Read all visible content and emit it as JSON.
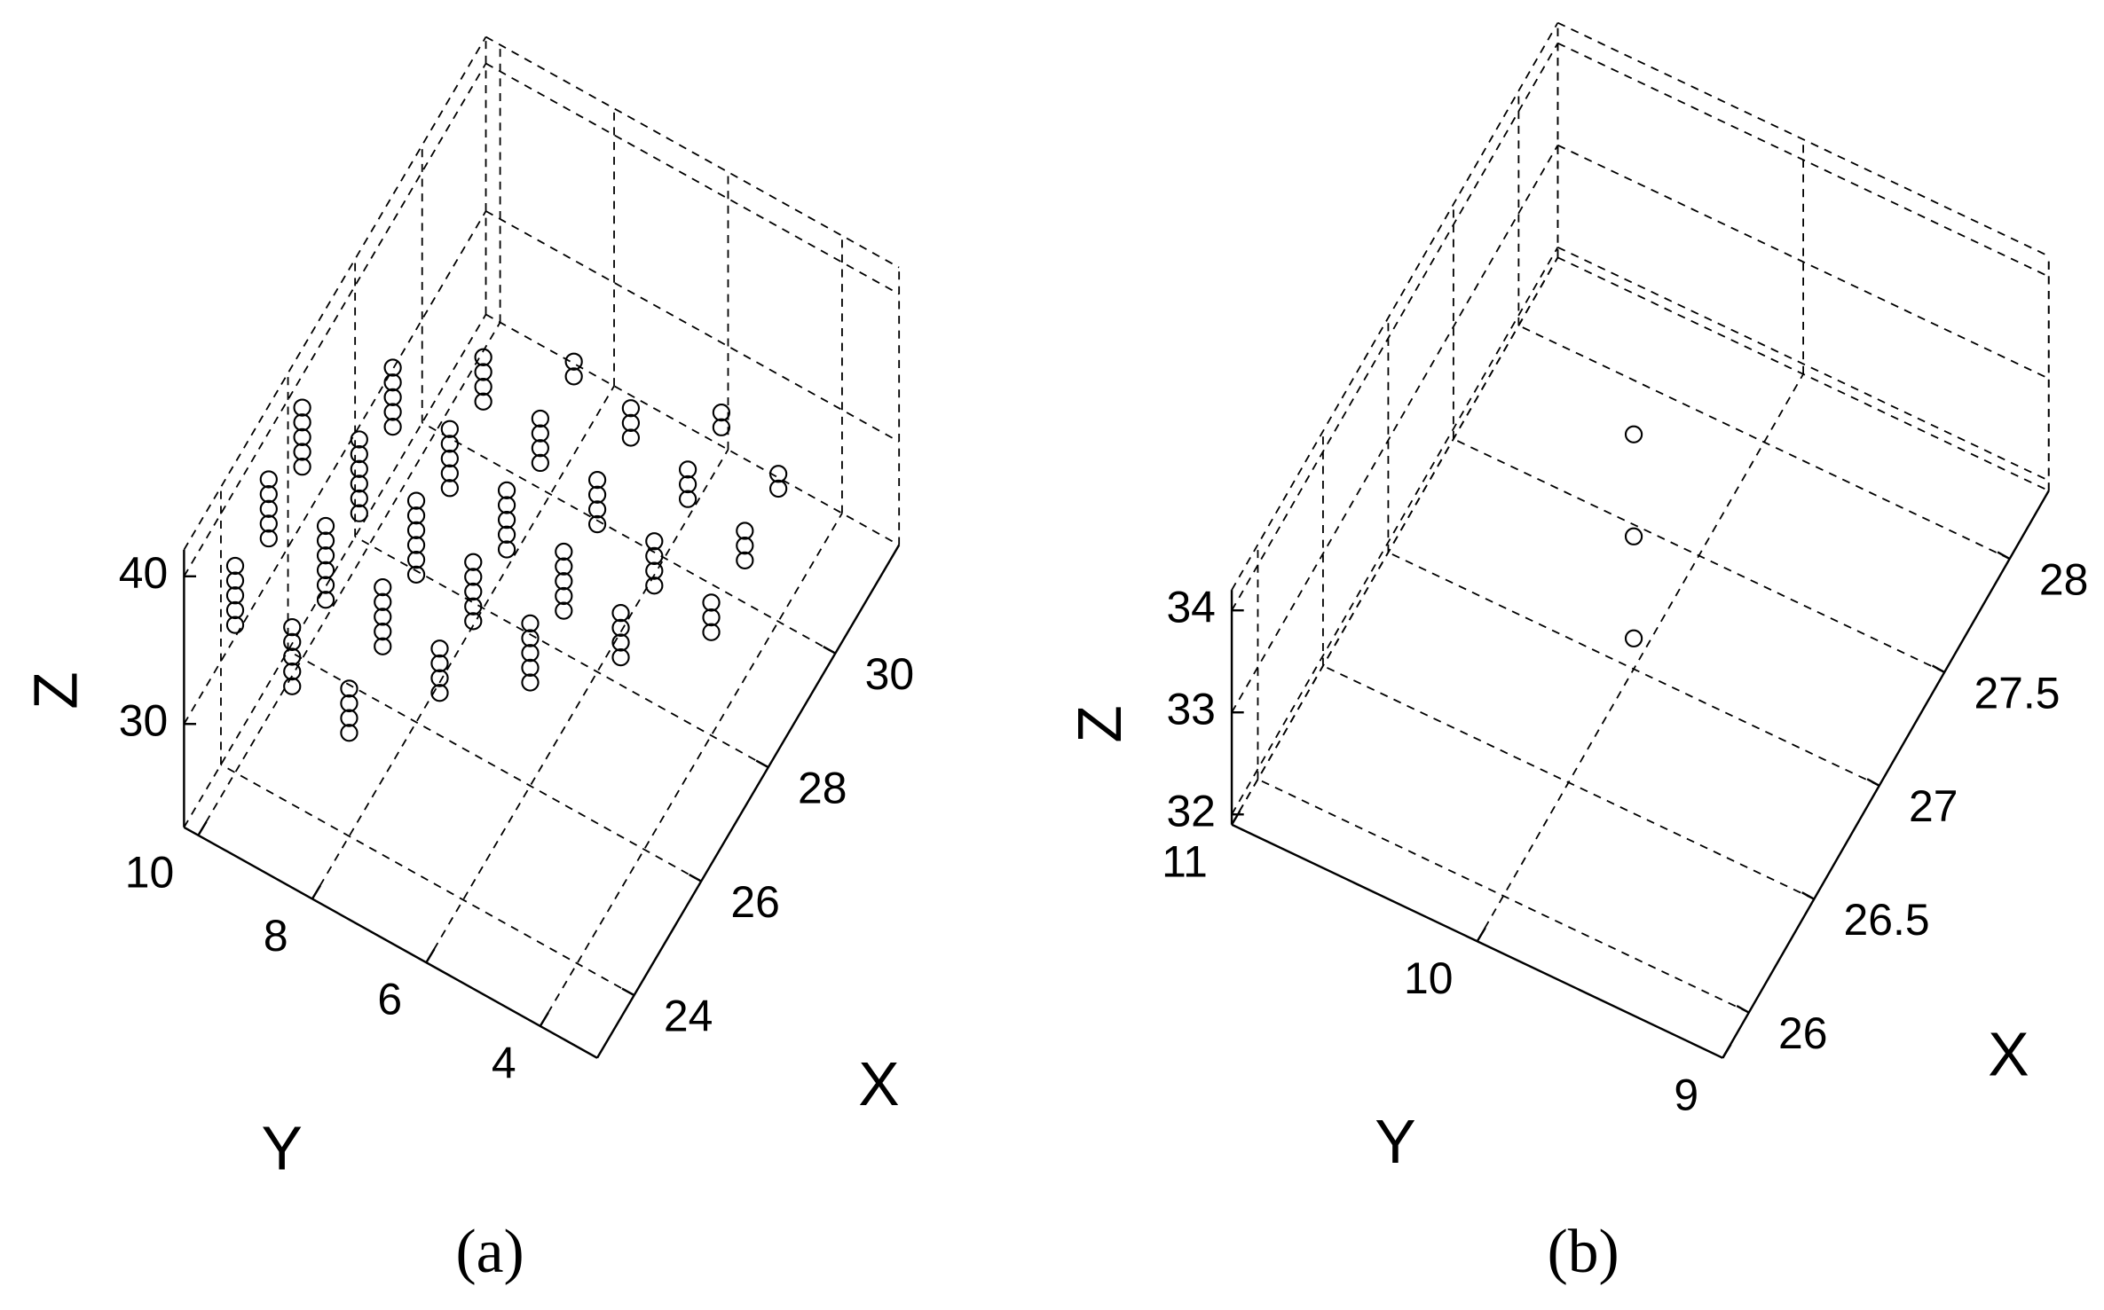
{
  "chart_data": [
    {
      "type": "scatter3d",
      "panel_label": "(a)",
      "x_label": "X",
      "y_label": "Y",
      "z_label": "Z",
      "color": "#000000",
      "grid": true,
      "xlim": [
        22.9,
        31.9
      ],
      "ylim": [
        3,
        10.25
      ],
      "zlim": [
        23,
        41.8
      ],
      "xticks": [
        24,
        26,
        28,
        30
      ],
      "yticks": [
        4,
        6,
        8,
        10
      ],
      "zticks": [
        30,
        40
      ],
      "x": [
        24,
        24,
        24,
        24,
        24,
        25,
        25,
        25,
        25,
        25,
        26,
        26,
        26,
        26,
        26,
        24,
        24,
        24,
        24,
        24,
        25,
        25,
        25,
        25,
        25,
        25,
        26,
        26,
        26,
        26,
        26,
        26,
        27,
        27,
        27,
        27,
        27,
        24,
        24,
        24,
        24,
        25,
        25,
        25,
        25,
        25,
        26,
        26,
        26,
        26,
        26,
        26,
        27,
        27,
        27,
        27,
        27,
        28,
        28,
        28,
        28,
        25,
        25,
        25,
        25,
        26,
        26,
        26,
        26,
        26,
        27,
        27,
        27,
        27,
        27,
        28,
        28,
        28,
        28,
        29,
        29,
        26,
        26,
        26,
        26,
        26,
        27,
        27,
        27,
        27,
        27,
        28,
        28,
        28,
        28,
        29,
        29,
        29,
        27,
        27,
        27,
        27,
        28,
        28,
        28,
        28,
        29,
        29,
        29,
        30,
        30,
        28,
        28,
        28,
        29,
        29,
        29,
        30,
        30
      ],
      "y": [
        10,
        10,
        10,
        10,
        10,
        10,
        10,
        10,
        10,
        10,
        10,
        10,
        10,
        10,
        10,
        9,
        9,
        9,
        9,
        9,
        9,
        9,
        9,
        9,
        9,
        9,
        9,
        9,
        9,
        9,
        9,
        9,
        9,
        9,
        9,
        9,
        9,
        8,
        8,
        8,
        8,
        8,
        8,
        8,
        8,
        8,
        8,
        8,
        8,
        8,
        8,
        8,
        8,
        8,
        8,
        8,
        8,
        8,
        8,
        8,
        8,
        7,
        7,
        7,
        7,
        7,
        7,
        7,
        7,
        7,
        7,
        7,
        7,
        7,
        7,
        7,
        7,
        7,
        7,
        7,
        7,
        6,
        6,
        6,
        6,
        6,
        6,
        6,
        6,
        6,
        6,
        6,
        6,
        6,
        6,
        6,
        6,
        6,
        5,
        5,
        5,
        5,
        5,
        5,
        5,
        5,
        5,
        5,
        5,
        5,
        5,
        4,
        4,
        4,
        4,
        4,
        4,
        4,
        4
      ],
      "z": [
        33,
        34,
        35,
        36,
        37,
        35,
        36,
        37,
        38,
        39,
        36,
        37,
        38,
        39,
        40,
        31,
        32,
        33,
        34,
        35,
        33,
        34,
        35,
        36,
        37,
        38,
        35,
        36,
        37,
        38,
        39,
        40,
        37,
        38,
        39,
        40,
        41,
        30,
        31,
        32,
        33,
        32,
        33,
        34,
        35,
        36,
        33,
        34,
        35,
        36,
        37,
        38,
        35,
        36,
        37,
        38,
        39,
        37,
        38,
        39,
        40,
        31,
        32,
        33,
        34,
        32,
        33,
        34,
        35,
        36,
        33,
        34,
        35,
        36,
        37,
        35,
        36,
        37,
        38,
        37,
        38,
        30,
        31,
        32,
        33,
        34,
        31,
        32,
        33,
        34,
        35,
        33,
        34,
        35,
        36,
        35,
        36,
        37,
        30,
        31,
        32,
        33,
        31,
        32,
        33,
        34,
        33,
        34,
        35,
        34,
        35,
        30,
        31,
        32,
        31,
        32,
        33,
        32,
        33
      ]
    },
    {
      "type": "scatter3d",
      "panel_label": "(b)",
      "x_label": "X",
      "y_label": "Y",
      "z_label": "Z",
      "color": "#000000",
      "grid": true,
      "xlim": [
        25.8,
        28.3
      ],
      "ylim": [
        9,
        11
      ],
      "zlim": [
        31.9,
        34.2
      ],
      "xticks": [
        26,
        26.5,
        27,
        27.5,
        28
      ],
      "yticks": [
        9,
        10,
        11
      ],
      "zticks": [
        32,
        33,
        34
      ],
      "x": [
        27,
        27,
        27
      ],
      "y": [
        10,
        10,
        10
      ],
      "z": [
        32.2,
        33.2,
        34.2
      ]
    }
  ]
}
